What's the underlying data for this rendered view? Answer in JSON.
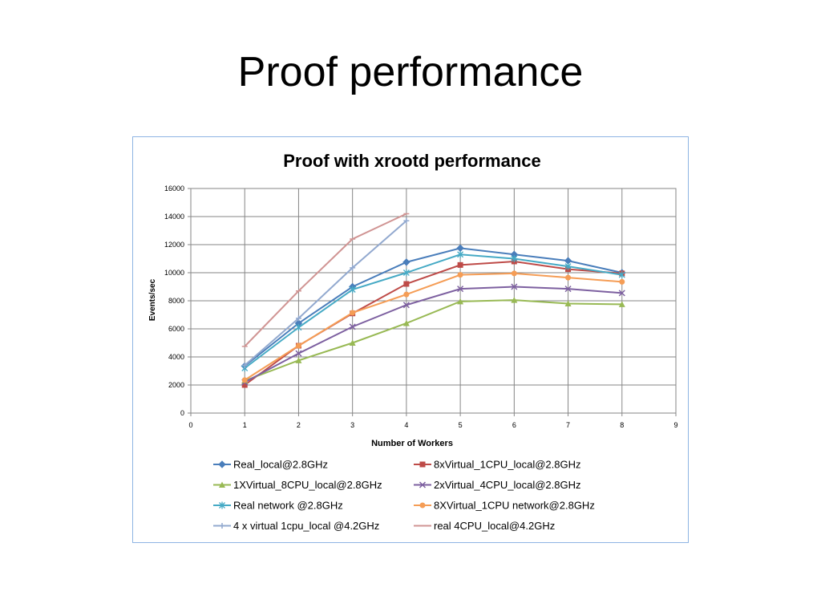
{
  "slide": {
    "title": "Proof performance"
  },
  "chart_data": {
    "type": "line",
    "title": "Proof with xrootd performance",
    "xlabel": "Number of Workers",
    "ylabel": "Events/sec",
    "xlim": [
      0,
      9
    ],
    "ylim": [
      0,
      16000
    ],
    "x_ticks": [
      "0",
      "1",
      "2",
      "3",
      "4",
      "5",
      "6",
      "7",
      "8",
      "9"
    ],
    "y_ticks": [
      "0",
      "2000",
      "4000",
      "6000",
      "8000",
      "10000",
      "12000",
      "14000",
      "16000"
    ],
    "grid": true,
    "legend_position": "bottom",
    "series": [
      {
        "name": "Real_local@2.8GHz",
        "color": "#4a7ebb",
        "marker": "diamond",
        "x": [
          1,
          2,
          3,
          4,
          5,
          6,
          7,
          8
        ],
        "y": [
          3350,
          6400,
          9000,
          10750,
          11750,
          11300,
          10850,
          10000
        ]
      },
      {
        "name": "8xVirtual_1CPU_local@2.8GHz",
        "color": "#be4b48",
        "marker": "square",
        "x": [
          1,
          2,
          3,
          4,
          5,
          6,
          7,
          8
        ],
        "y": [
          2000,
          4800,
          7100,
          9200,
          10550,
          10800,
          10250,
          9950
        ]
      },
      {
        "name": "1XVirtual_8CPU_local@2.8GHz",
        "color": "#98b954",
        "marker": "triangle",
        "x": [
          1,
          2,
          3,
          4,
          5,
          6,
          7,
          8
        ],
        "y": [
          2300,
          3750,
          5000,
          6400,
          7950,
          8050,
          7800,
          7750
        ]
      },
      {
        "name": "2xVirtual_4CPU_local@2.8GHz",
        "color": "#7d60a0",
        "marker": "x",
        "x": [
          1,
          2,
          3,
          4,
          5,
          6,
          7,
          8
        ],
        "y": [
          2200,
          4250,
          6150,
          7700,
          8850,
          9000,
          8850,
          8550
        ]
      },
      {
        "name": "Real network @2.8GHz",
        "color": "#46aac5",
        "marker": "star",
        "x": [
          1,
          2,
          3,
          4,
          5,
          6,
          7,
          8
        ],
        "y": [
          3200,
          6100,
          8800,
          10000,
          11300,
          11000,
          10450,
          9850
        ]
      },
      {
        "name": "8XVirtual_1CPU  network@2.8GHz",
        "color": "#f59d56",
        "marker": "circle",
        "x": [
          1,
          2,
          3,
          4,
          5,
          6,
          7,
          8
        ],
        "y": [
          2350,
          4800,
          7150,
          8450,
          9850,
          9950,
          9650,
          9350
        ]
      },
      {
        "name": "4 x virtual 1cpu_local @4.2GHz",
        "color": "#92a9cf",
        "marker": "plus",
        "x": [
          1,
          2,
          3,
          4
        ],
        "y": [
          3400,
          6750,
          10350,
          13700
        ]
      },
      {
        "name": "real 4CPU_local@4.2GHz",
        "color": "#d09493",
        "marker": "dash",
        "x": [
          1,
          2,
          3,
          4
        ],
        "y": [
          4750,
          8700,
          12400,
          14200
        ]
      }
    ]
  }
}
